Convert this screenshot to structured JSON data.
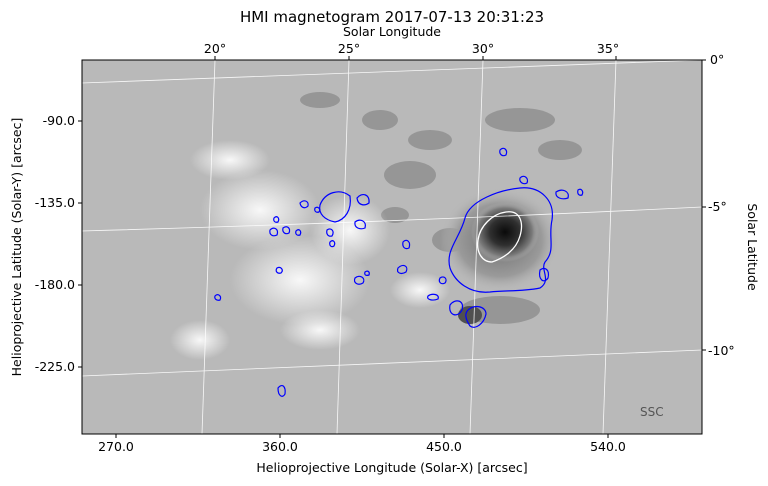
{
  "title": "HMI magnetogram 2017-07-13 20:31:23",
  "watermark": "SSC",
  "axes": {
    "bottom": {
      "label": "Helioprojective Longitude (Solar-X) [arcsec]",
      "ticks": [
        "270.0",
        "360.0",
        "450.0",
        "540.0"
      ]
    },
    "left": {
      "label": "Helioprojective Latitude (Solar-Y) [arcsec]",
      "ticks": [
        "-90.0",
        "-135.0",
        "-180.0",
        "-225.0"
      ]
    },
    "top": {
      "label": "Solar Longitude",
      "ticks": [
        "20°",
        "25°",
        "30°",
        "35°"
      ]
    },
    "right": {
      "label": "Solar Latitude",
      "ticks": [
        "0°",
        "-5°",
        "-10°"
      ]
    }
  },
  "colors": {
    "background_field": "#b9b9b9",
    "contour_positive": "#0000ff",
    "contour_negative": "#ffffff",
    "grid": "#ffffff"
  }
}
